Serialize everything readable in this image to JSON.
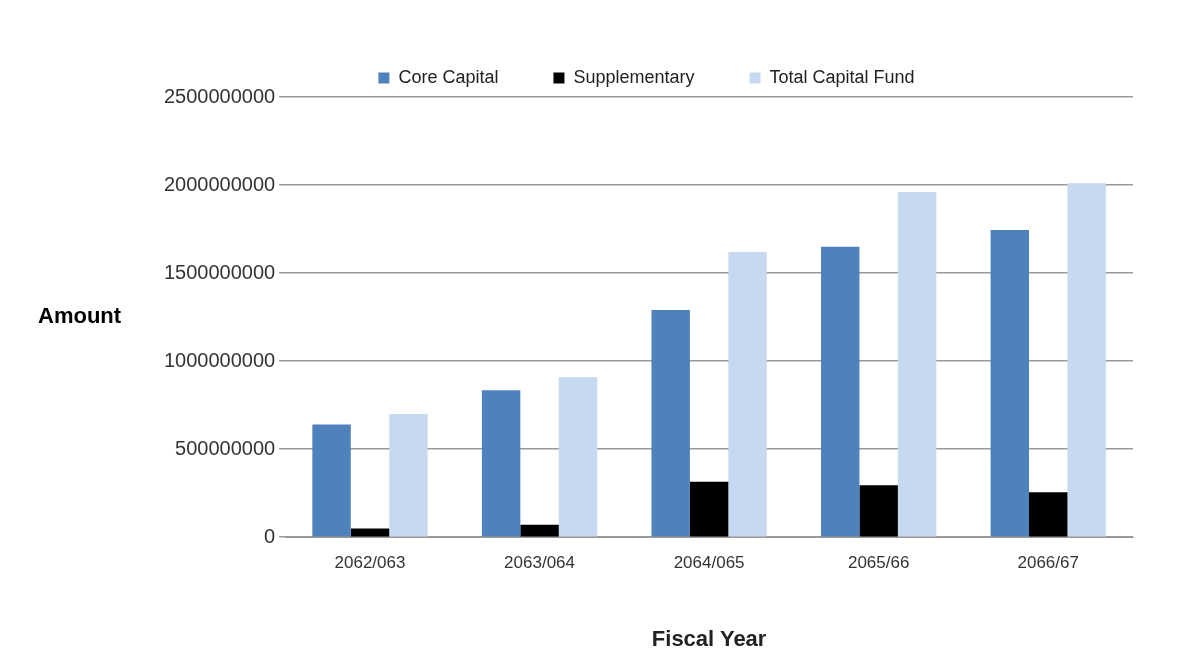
{
  "chart_data": {
    "type": "bar",
    "xlabel": "Fiscal Year",
    "ylabel": "Amount",
    "categories": [
      "2062/063",
      "2063/064",
      "2064/065",
      "2065/66",
      "2066/67"
    ],
    "series": [
      {
        "name": "Core Capital",
        "color": "#4f81bd",
        "values": [
          640000000,
          835000000,
          1290000000,
          1650000000,
          1745000000
        ]
      },
      {
        "name": "Supplementary",
        "color": "#000000",
        "values": [
          50000000,
          70000000,
          315000000,
          295000000,
          255000000
        ]
      },
      {
        "name": "Total Capital Fund",
        "color": "#c6d9f1",
        "values": [
          700000000,
          910000000,
          1620000000,
          1960000000,
          2010000000
        ]
      }
    ],
    "ylim": [
      0,
      2500000000
    ],
    "yticks": [
      0,
      500000000,
      1000000000,
      1500000000,
      2000000000,
      2500000000
    ],
    "grid": "y",
    "legend": "top"
  }
}
